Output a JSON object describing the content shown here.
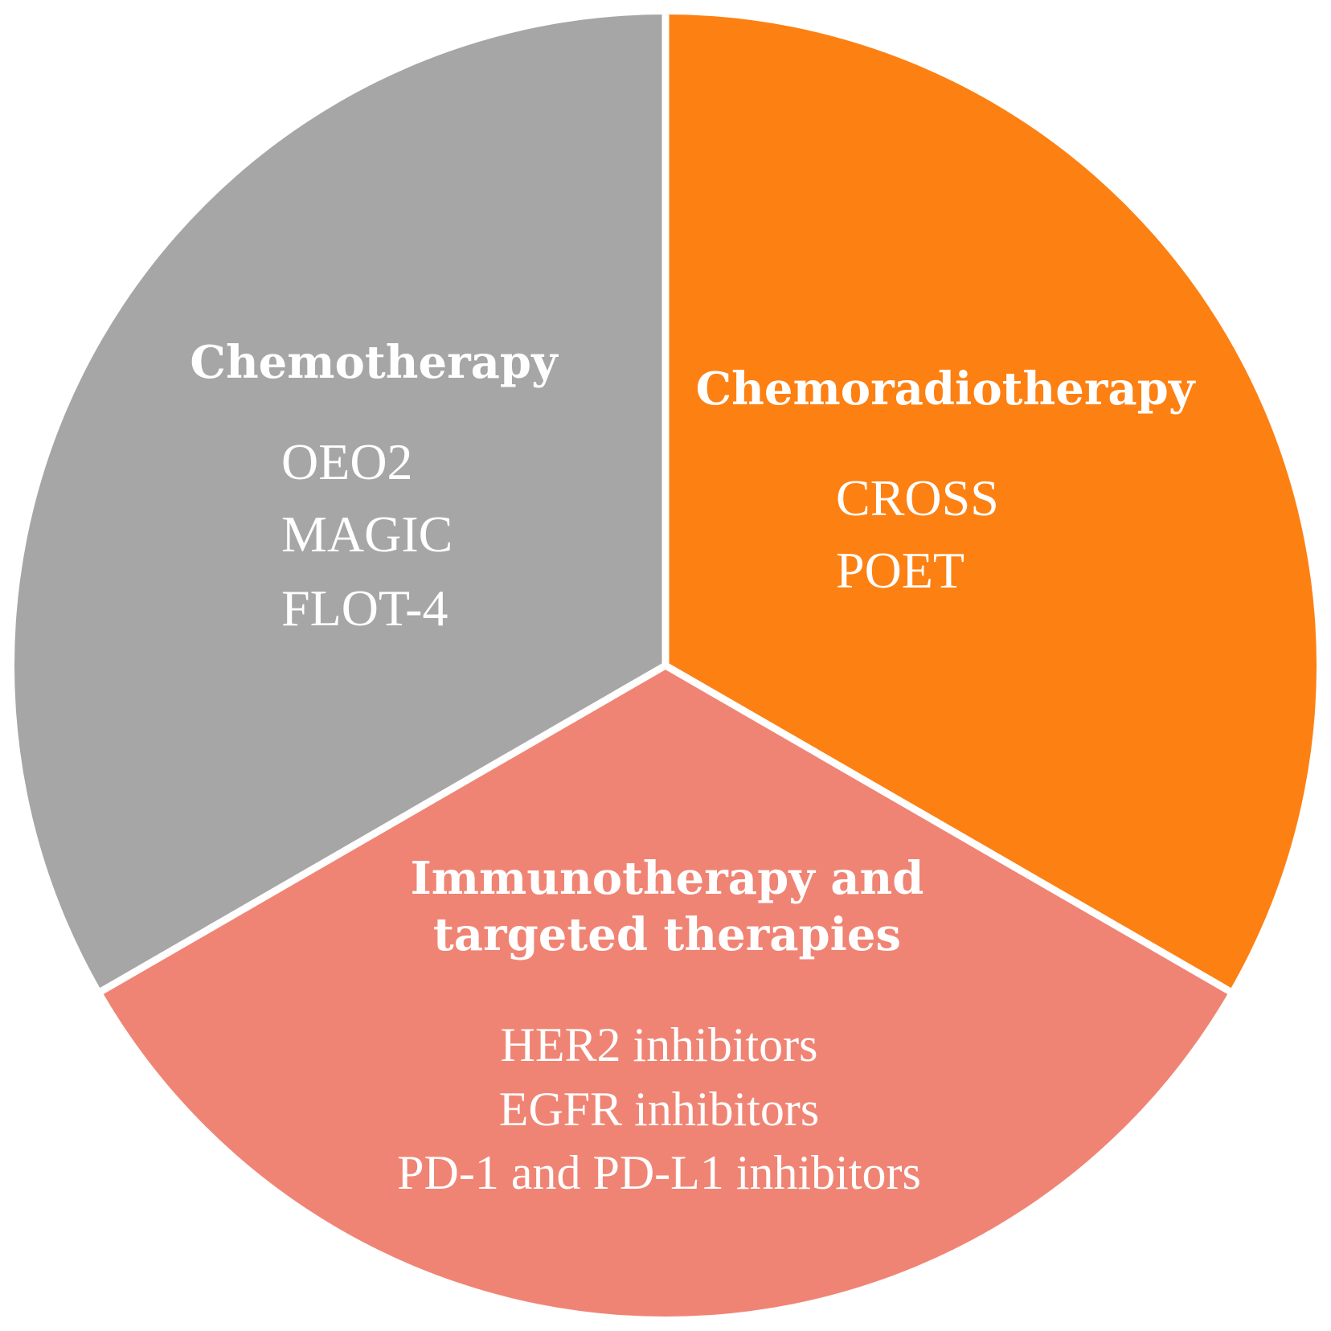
{
  "colors": {
    "chemotherapy": "#a6a6a6",
    "chemoradiotherapy": "#fd8013",
    "immunotherapy": "#f08474",
    "separator": "#ffffff",
    "text": "#ffffff"
  },
  "segments": {
    "chemotherapy": {
      "heading": "Chemotherapy",
      "items": [
        "OEO2",
        "MAGIC",
        "FLOT-4"
      ]
    },
    "chemoradiotherapy": {
      "heading": "Chemoradiotherapy",
      "items": [
        "CROSS",
        "POET"
      ]
    },
    "immunotherapy": {
      "heading_lines": [
        "Immunotherapy and",
        "targeted therapies"
      ],
      "items": [
        "HER2 inhibitors",
        "EGFR inhibitors",
        "PD-1 and PD-L1 inhibitors"
      ]
    }
  }
}
